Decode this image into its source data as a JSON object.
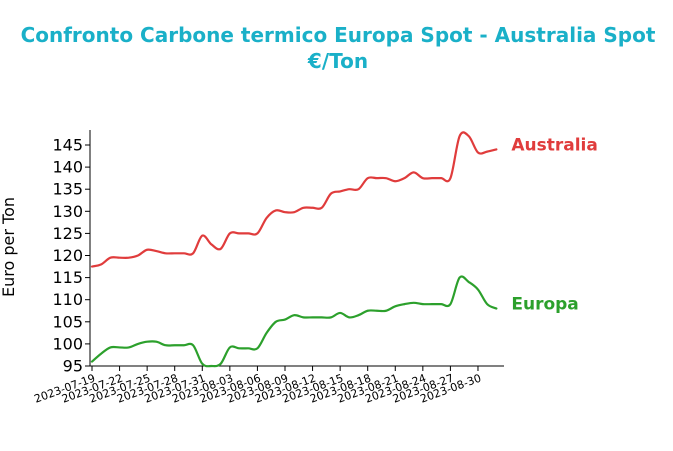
{
  "chart_data": {
    "type": "line",
    "title": {
      "line1": "Confronto Carbone termico Europa Spot - Australia Spot",
      "line2": "€/Ton"
    },
    "xlabel": "",
    "ylabel": "Euro per Ton",
    "ylim": [
      95,
      148
    ],
    "xlim": [
      "2023-07-19",
      "2023-08-31"
    ],
    "yticks": [
      95,
      100,
      105,
      110,
      115,
      120,
      125,
      130,
      135,
      140,
      145
    ],
    "xticks": [
      "2023-07-19",
      "2023-07-22",
      "2023-07-25",
      "2023-07-28",
      "2023-07-31",
      "2023-08-03",
      "2023-08-06",
      "2023-08-09",
      "2023-08-12",
      "2023-08-15",
      "2023-08-18",
      "2023-08-21",
      "2023-08-24",
      "2023-08-27",
      "2023-08-30"
    ],
    "grid": false,
    "legend": "inline labels at right end of lines",
    "series": [
      {
        "name": "Australia",
        "color": "#e03c3c",
        "points": [
          [
            "2023-07-19",
            117.5
          ],
          [
            "2023-07-20",
            118.0
          ],
          [
            "2023-07-21",
            119.5
          ],
          [
            "2023-07-22",
            119.5
          ],
          [
            "2023-07-23",
            119.5
          ],
          [
            "2023-07-24",
            120.0
          ],
          [
            "2023-07-25",
            121.3
          ],
          [
            "2023-07-26",
            121.0
          ],
          [
            "2023-07-27",
            120.5
          ],
          [
            "2023-07-28",
            120.5
          ],
          [
            "2023-07-29",
            120.5
          ],
          [
            "2023-07-30",
            120.5
          ],
          [
            "2023-07-31",
            124.5
          ],
          [
            "2023-08-01",
            122.5
          ],
          [
            "2023-08-02",
            121.5
          ],
          [
            "2023-08-03",
            125.0
          ],
          [
            "2023-08-04",
            125.0
          ],
          [
            "2023-08-05",
            125.0
          ],
          [
            "2023-08-06",
            125.0
          ],
          [
            "2023-08-07",
            128.5
          ],
          [
            "2023-08-08",
            130.2
          ],
          [
            "2023-08-09",
            129.8
          ],
          [
            "2023-08-10",
            129.8
          ],
          [
            "2023-08-11",
            130.8
          ],
          [
            "2023-08-12",
            130.8
          ],
          [
            "2023-08-13",
            130.8
          ],
          [
            "2023-08-14",
            134.0
          ],
          [
            "2023-08-15",
            134.5
          ],
          [
            "2023-08-16",
            135.0
          ],
          [
            "2023-08-17",
            135.0
          ],
          [
            "2023-08-18",
            137.5
          ],
          [
            "2023-08-19",
            137.5
          ],
          [
            "2023-08-20",
            137.5
          ],
          [
            "2023-08-21",
            136.8
          ],
          [
            "2023-08-22",
            137.5
          ],
          [
            "2023-08-23",
            138.8
          ],
          [
            "2023-08-24",
            137.5
          ],
          [
            "2023-08-25",
            137.5
          ],
          [
            "2023-08-26",
            137.5
          ],
          [
            "2023-08-27",
            137.5
          ],
          [
            "2023-08-28",
            147.0
          ],
          [
            "2023-08-29",
            147.0
          ],
          [
            "2023-08-30",
            143.3
          ],
          [
            "2023-08-31",
            143.5
          ],
          [
            "2023-09-01",
            144.0
          ]
        ]
      },
      {
        "name": "Europa",
        "color": "#2ca02c",
        "points": [
          [
            "2023-07-19",
            96.0
          ],
          [
            "2023-07-20",
            97.8
          ],
          [
            "2023-07-21",
            99.2
          ],
          [
            "2023-07-22",
            99.2
          ],
          [
            "2023-07-23",
            99.2
          ],
          [
            "2023-07-24",
            100.0
          ],
          [
            "2023-07-25",
            100.5
          ],
          [
            "2023-07-26",
            100.5
          ],
          [
            "2023-07-27",
            99.7
          ],
          [
            "2023-07-28",
            99.7
          ],
          [
            "2023-07-29",
            99.7
          ],
          [
            "2023-07-30",
            99.7
          ],
          [
            "2023-07-31",
            95.5
          ],
          [
            "2023-08-01",
            95.0
          ],
          [
            "2023-08-02",
            95.5
          ],
          [
            "2023-08-03",
            99.2
          ],
          [
            "2023-08-04",
            99.0
          ],
          [
            "2023-08-05",
            99.0
          ],
          [
            "2023-08-06",
            99.0
          ],
          [
            "2023-08-07",
            102.5
          ],
          [
            "2023-08-08",
            105.0
          ],
          [
            "2023-08-09",
            105.5
          ],
          [
            "2023-08-10",
            106.5
          ],
          [
            "2023-08-11",
            106.0
          ],
          [
            "2023-08-12",
            106.0
          ],
          [
            "2023-08-13",
            106.0
          ],
          [
            "2023-08-14",
            106.0
          ],
          [
            "2023-08-15",
            107.0
          ],
          [
            "2023-08-16",
            106.0
          ],
          [
            "2023-08-17",
            106.5
          ],
          [
            "2023-08-18",
            107.5
          ],
          [
            "2023-08-19",
            107.5
          ],
          [
            "2023-08-20",
            107.5
          ],
          [
            "2023-08-21",
            108.5
          ],
          [
            "2023-08-22",
            109.0
          ],
          [
            "2023-08-23",
            109.3
          ],
          [
            "2023-08-24",
            109.0
          ],
          [
            "2023-08-25",
            109.0
          ],
          [
            "2023-08-26",
            109.0
          ],
          [
            "2023-08-27",
            109.0
          ],
          [
            "2023-08-28",
            115.0
          ],
          [
            "2023-08-29",
            114.0
          ],
          [
            "2023-08-30",
            112.3
          ],
          [
            "2023-08-31",
            109.0
          ],
          [
            "2023-09-01",
            108.0
          ]
        ]
      }
    ]
  }
}
